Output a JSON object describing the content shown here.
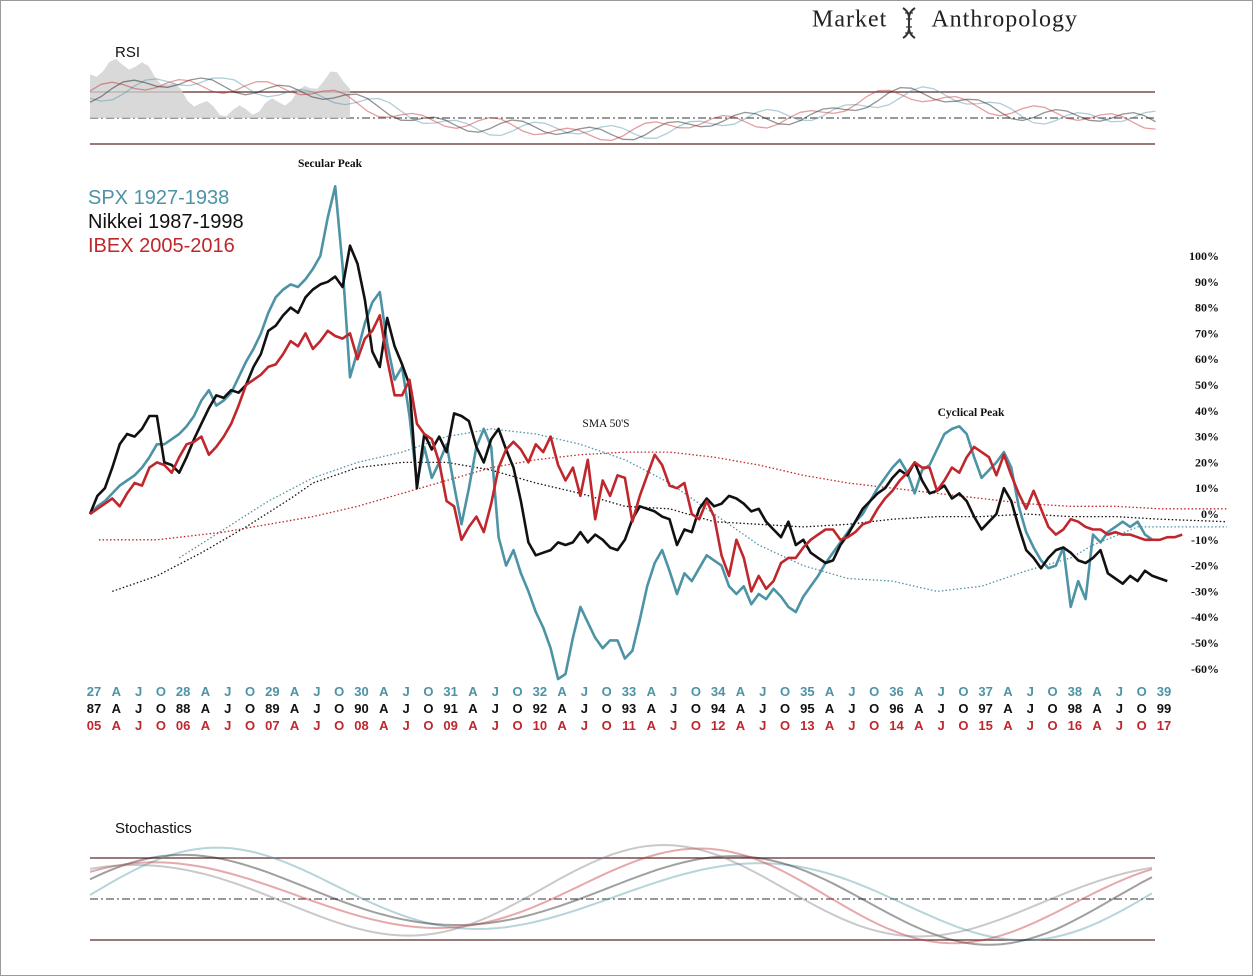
{
  "brand": {
    "word1": "Market",
    "word2": "Anthropology"
  },
  "legend": [
    {
      "label": "SPX 1927-1938",
      "color": "#4d93a6"
    },
    {
      "label": "Nikkei 1987-1998",
      "color": "#111111"
    },
    {
      "label": "IBEX 2005-2016",
      "color": "#c0272d"
    }
  ],
  "panels": {
    "rsi": "RSI",
    "stochastics": "Stochastics"
  },
  "chart_data": {
    "type": "line",
    "annotations": [
      "Secular Peak",
      "Cyclical Peak",
      "SMA 50'S"
    ],
    "ylim": [
      -65,
      105
    ],
    "y_ticks": [
      100,
      90,
      80,
      70,
      60,
      50,
      40,
      30,
      20,
      10,
      0,
      -10,
      -20,
      -30,
      -40,
      -50,
      -60
    ],
    "y_unit": "%",
    "x_labels": [
      {
        "color": "#4d93a6",
        "labels": [
          "27",
          "A",
          "J",
          "O",
          "28",
          "A",
          "J",
          "O",
          "29",
          "A",
          "J",
          "O",
          "30",
          "A",
          "J",
          "O",
          "31",
          "A",
          "J",
          "O",
          "32",
          "A",
          "J",
          "O",
          "33",
          "A",
          "J",
          "O",
          "34",
          "A",
          "J",
          "O",
          "35",
          "A",
          "J",
          "O",
          "36",
          "A",
          "J",
          "O",
          "37",
          "A",
          "J",
          "O",
          "38",
          "A",
          "J",
          "O",
          "39"
        ]
      },
      {
        "color": "#111111",
        "labels": [
          "87",
          "A",
          "J",
          "O",
          "88",
          "A",
          "J",
          "O",
          "89",
          "A",
          "J",
          "O",
          "90",
          "A",
          "J",
          "O",
          "91",
          "A",
          "J",
          "O",
          "92",
          "A",
          "J",
          "O",
          "93",
          "A",
          "J",
          "O",
          "94",
          "A",
          "J",
          "O",
          "95",
          "A",
          "J",
          "O",
          "96",
          "A",
          "J",
          "O",
          "97",
          "A",
          "J",
          "O",
          "98",
          "A",
          "J",
          "O",
          "99"
        ]
      },
      {
        "color": "#c0272d",
        "labels": [
          "05",
          "A",
          "J",
          "O",
          "06",
          "A",
          "J",
          "O",
          "07",
          "A",
          "J",
          "O",
          "08",
          "A",
          "J",
          "O",
          "09",
          "A",
          "J",
          "O",
          "10",
          "A",
          "J",
          "O",
          "11",
          "A",
          "J",
          "O",
          "12",
          "A",
          "J",
          "O",
          "13",
          "A",
          "J",
          "O",
          "14",
          "A",
          "J",
          "O",
          "15",
          "A",
          "J",
          "O",
          "16",
          "A",
          "J",
          "O",
          "17"
        ]
      }
    ],
    "series": [
      {
        "name": "SPX 1927-1938",
        "color": "#4d93a6",
        "step": 0.3333,
        "values": [
          0,
          3,
          5,
          8,
          11,
          13,
          15,
          18,
          22,
          27,
          27,
          29,
          31,
          34,
          38,
          44,
          48,
          42,
          44,
          47,
          53,
          59,
          64,
          70,
          78,
          84,
          87,
          89,
          88,
          91,
          95,
          100,
          115,
          127,
          96,
          53,
          63,
          74,
          82,
          86,
          66,
          52,
          57,
          38,
          12,
          26,
          14,
          20,
          27,
          11,
          -4,
          10,
          26,
          33,
          26,
          -9,
          -20,
          -14,
          -23,
          -30,
          -38,
          -44,
          -52,
          -64,
          -62,
          -48,
          -36,
          -42,
          -48,
          -52,
          -49,
          -49,
          -56,
          -53,
          -41,
          -28,
          -19,
          -14,
          -22,
          -31,
          -23,
          -26,
          -21,
          -16,
          -18,
          -20,
          -28,
          -31,
          -28,
          -35,
          -31,
          -33,
          -29,
          -32,
          -36,
          -38,
          -32,
          -28,
          -24,
          -19,
          -15,
          -11,
          -7,
          -3,
          0,
          5,
          10,
          14,
          18,
          21,
          16,
          8,
          17,
          19,
          25,
          31,
          33,
          34,
          31,
          22,
          14,
          17,
          20,
          24,
          18,
          3,
          -7,
          -13,
          -18,
          -21,
          -20,
          -13,
          -36,
          -26,
          -33,
          -8,
          -11,
          -7,
          -5,
          -3,
          -5,
          -3,
          -8,
          -10
        ]
      },
      {
        "name": "Nikkei 1987-1998",
        "color": "#111111",
        "step": 0.3333,
        "values": [
          0,
          7,
          10,
          18,
          27,
          31,
          30,
          33,
          38,
          38,
          20,
          19,
          16,
          22,
          29,
          35,
          41,
          46,
          45,
          48,
          47,
          50,
          57,
          62,
          71,
          73,
          77,
          80,
          78,
          84,
          87,
          89,
          90,
          92,
          88,
          104,
          97,
          83,
          63,
          57,
          76,
          65,
          58,
          50,
          10,
          31,
          25,
          30,
          24,
          39,
          38,
          36,
          26,
          20,
          29,
          33,
          25,
          18,
          5,
          -11,
          -16,
          -15,
          -14,
          -11,
          -12,
          -11,
          -7,
          -11,
          -8,
          -10,
          -13,
          -14,
          -10,
          -2,
          3,
          2,
          1,
          -1,
          -2,
          -12,
          -6,
          -7,
          2,
          6,
          3,
          4,
          7,
          6,
          4,
          1,
          2,
          -3,
          -6,
          -9,
          -3,
          -12,
          -10,
          -15,
          -17,
          -19,
          -18,
          -12,
          -8,
          -3,
          2,
          5,
          8,
          10,
          14,
          17,
          15,
          20,
          13,
          8,
          9,
          11,
          6,
          8,
          5,
          -1,
          -6,
          -3,
          0,
          10,
          5,
          -5,
          -14,
          -17,
          -21,
          -17,
          -14,
          -13,
          -15,
          -18,
          -19,
          -17,
          -14,
          -23,
          -25,
          -27,
          -24,
          -26,
          -22,
          -24,
          -25,
          -26
        ]
      },
      {
        "name": "IBEX 2005-2016",
        "color": "#c0272d",
        "step": 0.3333,
        "values": [
          0,
          2,
          4,
          6,
          3,
          8,
          12,
          11,
          18,
          20,
          19,
          16,
          22,
          27,
          28,
          30,
          23,
          26,
          30,
          35,
          42,
          50,
          52,
          54,
          57,
          58,
          62,
          67,
          65,
          70,
          64,
          67,
          71,
          69,
          68,
          70,
          60,
          68,
          71,
          77,
          60,
          46,
          46,
          52,
          35,
          31,
          29,
          20,
          5,
          3,
          -10,
          -5,
          -1,
          -7,
          4,
          18,
          25,
          28,
          25,
          20,
          27,
          24,
          30,
          19,
          13,
          18,
          7,
          21,
          -2,
          13,
          7,
          15,
          14,
          -3,
          7,
          15,
          23,
          19,
          11,
          10,
          12,
          0,
          -2,
          5,
          -1,
          -16,
          -24,
          -10,
          -17,
          -30,
          -24,
          -29,
          -26,
          -19,
          -17,
          -17,
          -13,
          -10,
          -8,
          -6,
          -6,
          -10,
          -9,
          -7,
          -4,
          -3,
          2,
          6,
          9,
          13,
          16,
          20,
          18,
          18,
          9,
          13,
          18,
          16,
          22,
          26,
          24,
          22,
          15,
          23,
          15,
          8,
          2,
          9,
          2,
          -5,
          -8,
          -6,
          -2,
          -3,
          -5,
          -6,
          -6,
          -8,
          -7,
          -8,
          -8,
          -9,
          -10,
          -10,
          -10,
          -9,
          -9,
          -8
        ]
      },
      {
        "name": "SMA SPX",
        "color": "#4d93a6",
        "dotted": true,
        "points": [
          [
            4,
            -17
          ],
          [
            6,
            -6
          ],
          [
            8,
            5
          ],
          [
            10,
            14
          ],
          [
            12,
            20
          ],
          [
            14,
            24
          ],
          [
            16,
            30
          ],
          [
            18,
            33
          ],
          [
            20,
            31
          ],
          [
            22,
            27
          ],
          [
            24,
            21
          ],
          [
            26,
            12
          ],
          [
            28,
            0
          ],
          [
            30,
            -12
          ],
          [
            32,
            -20
          ],
          [
            34,
            -25
          ],
          [
            36,
            -26
          ],
          [
            38,
            -30
          ],
          [
            40,
            -28
          ],
          [
            42,
            -22
          ],
          [
            44,
            -17
          ],
          [
            45,
            -12
          ],
          [
            47,
            -5
          ],
          [
            49,
            -5
          ],
          [
            51,
            -5
          ]
        ]
      },
      {
        "name": "SMA Nikkei",
        "color": "#111111",
        "dotted": true,
        "points": [
          [
            1,
            -30
          ],
          [
            3,
            -24
          ],
          [
            5,
            -15
          ],
          [
            7,
            -5
          ],
          [
            9,
            6
          ],
          [
            10,
            12
          ],
          [
            12,
            18
          ],
          [
            14,
            20
          ],
          [
            16,
            20
          ],
          [
            18,
            17
          ],
          [
            20,
            12
          ],
          [
            22,
            8
          ],
          [
            24,
            3
          ],
          [
            26,
            2
          ],
          [
            28,
            -3
          ],
          [
            30,
            -4
          ],
          [
            32,
            -5
          ],
          [
            34,
            -4
          ],
          [
            36,
            -2
          ],
          [
            38,
            -1
          ],
          [
            40,
            -1
          ],
          [
            42,
            0
          ],
          [
            44,
            -1
          ],
          [
            46,
            -1
          ],
          [
            48,
            -2
          ],
          [
            51,
            -3
          ]
        ]
      },
      {
        "name": "SMA IBEX",
        "color": "#c0272d",
        "dotted": true,
        "points": [
          [
            0.4,
            -10
          ],
          [
            3,
            -10
          ],
          [
            6,
            -7
          ],
          [
            8,
            -4
          ],
          [
            10,
            -1
          ],
          [
            12,
            3
          ],
          [
            14,
            8
          ],
          [
            16,
            13
          ],
          [
            18,
            18
          ],
          [
            20,
            21
          ],
          [
            22,
            23
          ],
          [
            24,
            24
          ],
          [
            26,
            24
          ],
          [
            28,
            22
          ],
          [
            30,
            19
          ],
          [
            32,
            15
          ],
          [
            34,
            12
          ],
          [
            36,
            10
          ],
          [
            38,
            8
          ],
          [
            40,
            6
          ],
          [
            42,
            4
          ],
          [
            44,
            3
          ],
          [
            46,
            3
          ],
          [
            48,
            2
          ],
          [
            50,
            2
          ],
          [
            51,
            2
          ]
        ]
      }
    ]
  }
}
